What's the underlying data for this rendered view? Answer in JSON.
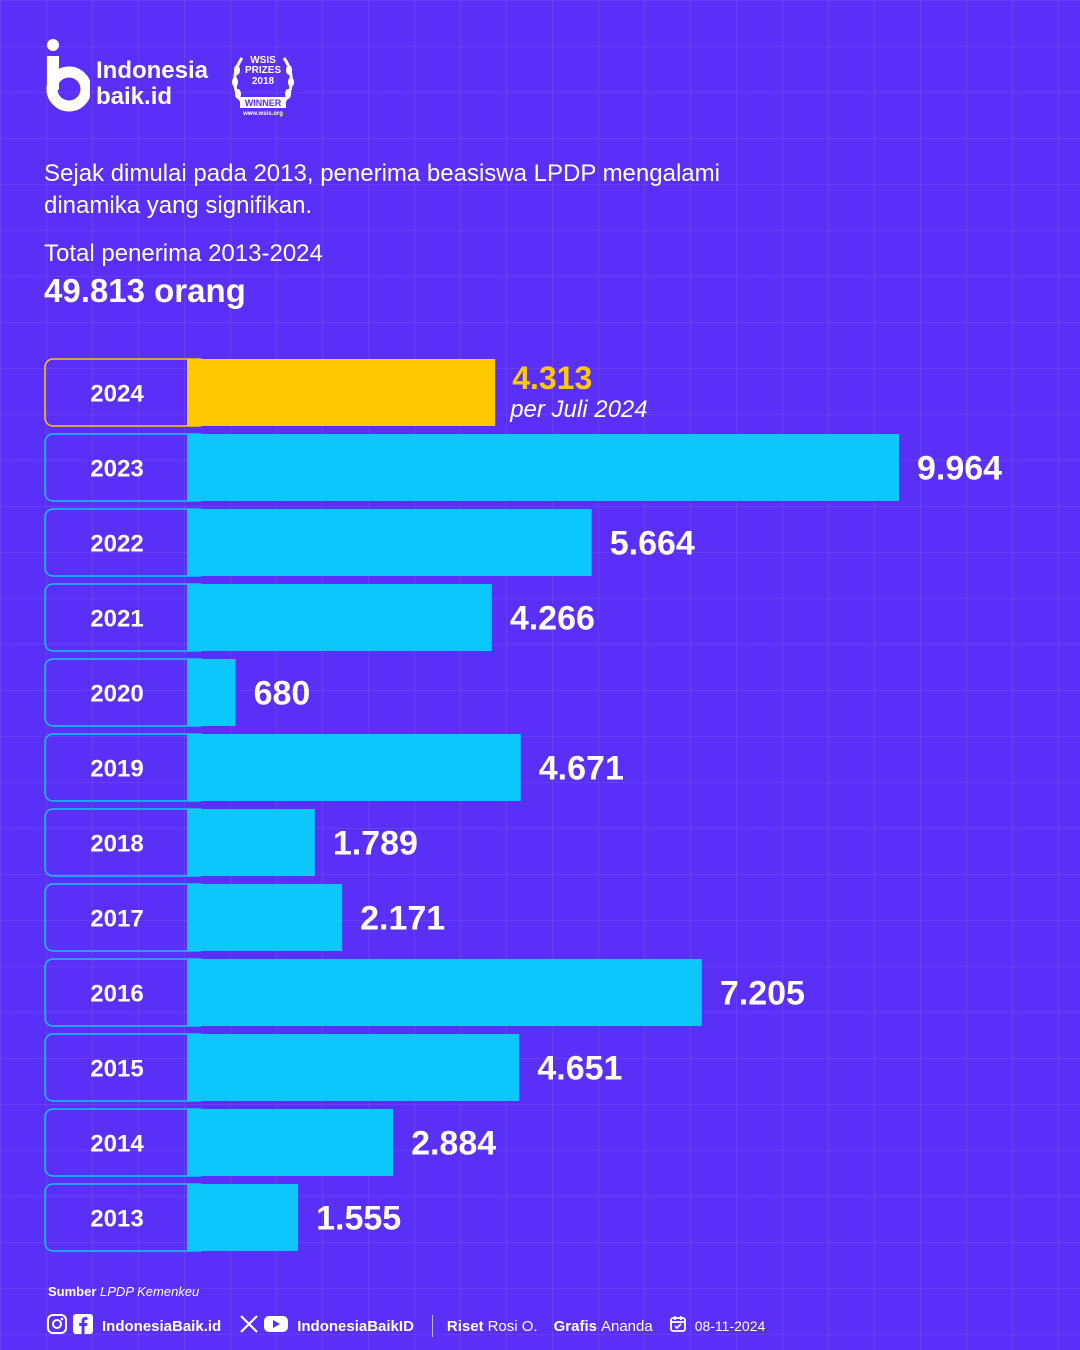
{
  "brand": {
    "line1": "Indonesia",
    "line2": "baik.id"
  },
  "award": {
    "line1": "WSIS",
    "line2": "PRIZES",
    "line3": "2018",
    "line4": "WINNER",
    "url": "www.wsis.org"
  },
  "intro": "Sejak dimulai pada 2013, penerima beasiswa LPDP mengalami dinamika yang signifikan.",
  "total": {
    "label": "Total penerima 2013-2024",
    "value": "49.813 orang"
  },
  "colors": {
    "background": "#5a2ff7",
    "bar": "#0bc7fa",
    "highlight": "#ffc800",
    "label_box_border": "#0bc7fa"
  },
  "chart_data": {
    "type": "bar",
    "orientation": "horizontal",
    "categories": [
      "2024",
      "2023",
      "2022",
      "2021",
      "2020",
      "2019",
      "2018",
      "2017",
      "2016",
      "2015",
      "2014",
      "2013"
    ],
    "values": [
      4313,
      9964,
      5664,
      4266,
      680,
      4671,
      1789,
      2171,
      7205,
      4651,
      2884,
      1555
    ],
    "value_labels": [
      "4.313",
      "9.964",
      "5.664",
      "4.266",
      "680",
      "4.671",
      "1.789",
      "2.171",
      "7.205",
      "4.651",
      "2.884",
      "1.555"
    ],
    "highlight_category": "2024",
    "highlight_note": "per Juli 2024",
    "xlim": [
      0,
      9964
    ]
  },
  "source": {
    "label": "Sumber",
    "value": "LPDP Kemenkeu"
  },
  "footer": {
    "handle1": "IndonesiaBaik.id",
    "handle2": "IndonesiaBaikID",
    "riset_label": "Riset",
    "riset_name": "Rosi O.",
    "grafis_label": "Grafis",
    "grafis_name": "Ananda",
    "date": "08-11-2024",
    "icons": [
      "instagram-icon",
      "facebook-icon",
      "x-icon",
      "youtube-icon",
      "calendar-icon"
    ]
  }
}
